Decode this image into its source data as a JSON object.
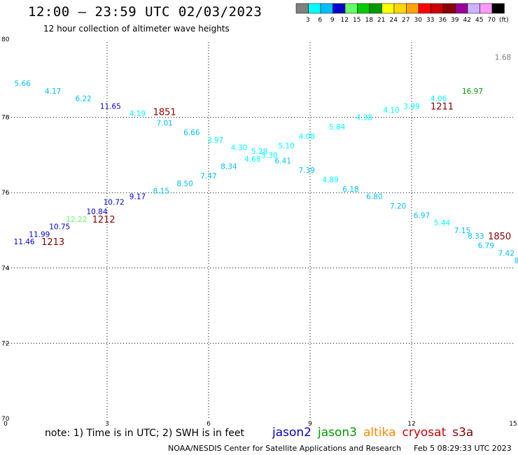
{
  "header": {
    "title": "12:00 – 23:59 UTC 02/03/2023",
    "subtitle": "12 hour collection of altimeter wave heights"
  },
  "colorbar": {
    "labels": [
      "3",
      "6",
      "9",
      "12",
      "15",
      "18",
      "21",
      "24",
      "27",
      "30",
      "33",
      "36",
      "39",
      "42",
      "45",
      "70",
      "(ft)"
    ],
    "colors": [
      "#808080",
      "#00ffff",
      "#00bfff",
      "#0000cd",
      "#66ff66",
      "#00cc00",
      "#009900",
      "#ffff00",
      "#ffd700",
      "#ffa500",
      "#ff0000",
      "#cc0000",
      "#880000",
      "#990099",
      "#ccb3ff",
      "#ff99ff",
      "#000000"
    ]
  },
  "footer": {
    "note": "note:  1) Time is in UTC;  2) SWH is in feet",
    "satellites": [
      {
        "name": "jason2",
        "color": "#0000cc"
      },
      {
        "name": "jason3",
        "color": "#009900"
      },
      {
        "name": "altika",
        "color": "#ff8800"
      },
      {
        "name": "cryosat",
        "color": "#cc0000"
      },
      {
        "name": "s3a",
        "color": "#880000"
      }
    ],
    "credit": "NOAA/NESDIS Center for Satellite Applications and Research",
    "timestamp": "Feb  5 08:29:33 UTC 2023"
  },
  "chart_data": {
    "type": "scatter",
    "xlim": [
      0,
      15
    ],
    "ylim": [
      70,
      80
    ],
    "x_ticks": [
      "0",
      "3",
      "6",
      "9",
      "12",
      "15"
    ],
    "y_ticks": [
      "70",
      "72",
      "74",
      "76",
      "78",
      "80"
    ],
    "grid": "dotted",
    "points": [
      {
        "x": 0.5,
        "y": 78.9,
        "label": "5.66",
        "color": "#00bfff"
      },
      {
        "x": 1.4,
        "y": 78.7,
        "label": "4.17",
        "color": "#00bfff"
      },
      {
        "x": 2.3,
        "y": 78.5,
        "label": "6.22",
        "color": "#00bfff"
      },
      {
        "x": 3.1,
        "y": 78.3,
        "label": "11.65",
        "color": "#0000cd"
      },
      {
        "x": 3.9,
        "y": 78.1,
        "label": "4.19",
        "color": "#00ffff"
      },
      {
        "x": 4.7,
        "y": 77.85,
        "label": "7.01",
        "color": "#00bfff"
      },
      {
        "x": 5.5,
        "y": 77.6,
        "label": "6.66",
        "color": "#00bfff"
      },
      {
        "x": 6.2,
        "y": 77.4,
        "label": "3.97",
        "color": "#00ffff"
      },
      {
        "x": 6.9,
        "y": 77.2,
        "label": "4.30",
        "color": "#00ffff"
      },
      {
        "x": 7.5,
        "y": 77.1,
        "label": "5.28",
        "color": "#00ffff"
      },
      {
        "x": 8.2,
        "y": 76.85,
        "label": "6.41",
        "color": "#00bfff"
      },
      {
        "x": 8.9,
        "y": 76.6,
        "label": "7.39",
        "color": "#00bfff"
      },
      {
        "x": 9.6,
        "y": 76.35,
        "label": "4.89",
        "color": "#00ffff"
      },
      {
        "x": 10.2,
        "y": 76.1,
        "label": "6.18",
        "color": "#00bfff"
      },
      {
        "x": 10.9,
        "y": 75.9,
        "label": "6.80",
        "color": "#00bfff"
      },
      {
        "x": 11.6,
        "y": 75.65,
        "label": "7.20",
        "color": "#00bfff"
      },
      {
        "x": 12.3,
        "y": 75.4,
        "label": "6.97",
        "color": "#00bfff"
      },
      {
        "x": 12.9,
        "y": 75.2,
        "label": "5.44",
        "color": "#00ffff"
      },
      {
        "x": 13.5,
        "y": 75.0,
        "label": "7.15",
        "color": "#00bfff"
      },
      {
        "x": 13.9,
        "y": 74.85,
        "label": "8.33",
        "color": "#00bfff"
      },
      {
        "x": 14.2,
        "y": 74.6,
        "label": "6.79",
        "color": "#00bfff"
      },
      {
        "x": 14.8,
        "y": 74.4,
        "label": "7.42",
        "color": "#00bfff"
      },
      {
        "x": 15.1,
        "y": 74.2,
        "label": "8",
        "color": "#00bfff"
      },
      {
        "x": 0.55,
        "y": 74.7,
        "label": "11.46",
        "color": "#0000cd"
      },
      {
        "x": 1.0,
        "y": 74.9,
        "label": "11.99",
        "color": "#0000cd"
      },
      {
        "x": 1.6,
        "y": 75.1,
        "label": "10.75",
        "color": "#0000cd"
      },
      {
        "x": 2.1,
        "y": 75.3,
        "label": "12.22",
        "color": "#66ff66"
      },
      {
        "x": 2.7,
        "y": 75.5,
        "label": "10.84",
        "color": "#0000cd"
      },
      {
        "x": 3.2,
        "y": 75.75,
        "label": "10.72",
        "color": "#0000cd"
      },
      {
        "x": 3.9,
        "y": 75.9,
        "label": "9.17",
        "color": "#0000cd"
      },
      {
        "x": 4.6,
        "y": 76.05,
        "label": "8.15",
        "color": "#00bfff"
      },
      {
        "x": 5.3,
        "y": 76.25,
        "label": "8.50",
        "color": "#00bfff"
      },
      {
        "x": 6.0,
        "y": 76.45,
        "label": "7.47",
        "color": "#00bfff"
      },
      {
        "x": 6.6,
        "y": 76.7,
        "label": "8.34",
        "color": "#00bfff"
      },
      {
        "x": 7.3,
        "y": 76.9,
        "label": "4.68",
        "color": "#00ffff"
      },
      {
        "x": 7.8,
        "y": 77.0,
        "label": "5.30",
        "color": "#00ffff"
      },
      {
        "x": 8.3,
        "y": 77.25,
        "label": "5.10",
        "color": "#00ffff"
      },
      {
        "x": 8.9,
        "y": 77.5,
        "label": "4.08",
        "color": "#00ffff"
      },
      {
        "x": 9.8,
        "y": 77.75,
        "label": "5.84",
        "color": "#00ffff"
      },
      {
        "x": 10.6,
        "y": 78.0,
        "label": "4.38",
        "color": "#00ffff"
      },
      {
        "x": 11.4,
        "y": 78.2,
        "label": "4.10",
        "color": "#00ffff"
      },
      {
        "x": 12.0,
        "y": 78.3,
        "label": "3.99",
        "color": "#00ffff"
      },
      {
        "x": 12.8,
        "y": 78.5,
        "label": "4.06",
        "color": "#00ffff"
      },
      {
        "x": 13.8,
        "y": 78.7,
        "label": "16.97",
        "color": "#009900"
      },
      {
        "x": 14.7,
        "y": 79.6,
        "label": "1.68",
        "color": "#808080"
      }
    ],
    "pass_ids": [
      {
        "x": 4.7,
        "y": 78.15,
        "label": "1851",
        "color": "#880000"
      },
      {
        "x": 12.9,
        "y": 78.3,
        "label": "1211",
        "color": "#880000"
      },
      {
        "x": 2.9,
        "y": 75.3,
        "label": "1212",
        "color": "#880000"
      },
      {
        "x": 1.4,
        "y": 74.7,
        "label": "1213",
        "color": "#880000"
      },
      {
        "x": 14.6,
        "y": 74.85,
        "label": "1850",
        "color": "#880000"
      }
    ]
  }
}
